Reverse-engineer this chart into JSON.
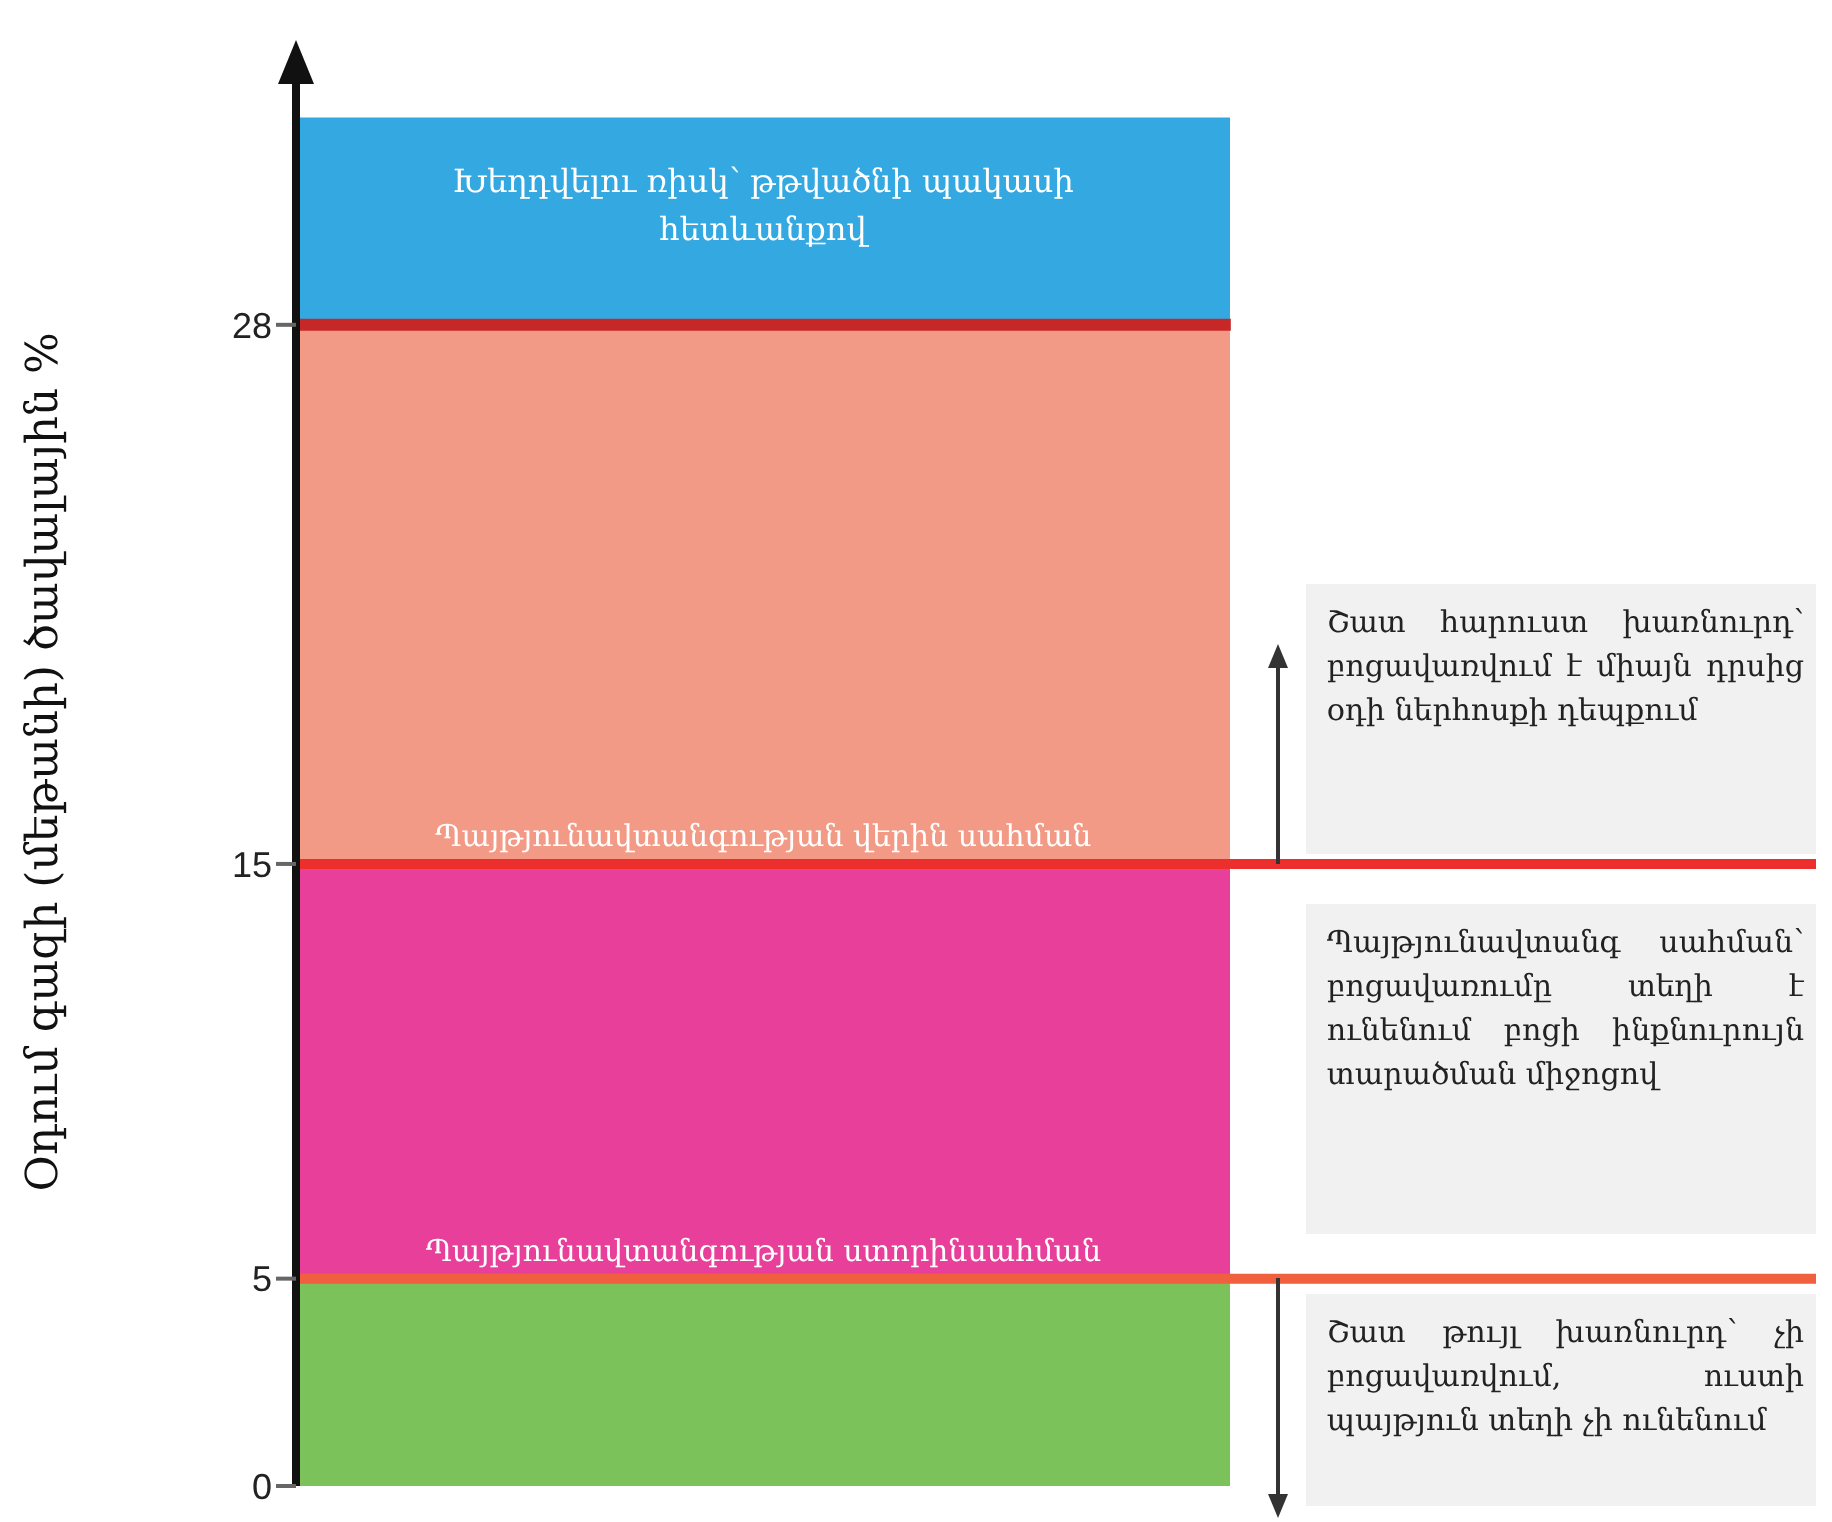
{
  "chart_data": {
    "type": "bar",
    "stacked": true,
    "categories": [
      null
    ],
    "ylabel": "Օդում գազի (մեթանի) ծավալային %",
    "ylim": [
      0,
      34
    ],
    "yticks": [
      0,
      5,
      15,
      28
    ],
    "series": [
      {
        "color": "#7cc25a",
        "values": [
          5
        ]
      },
      {
        "color": "#e8409a",
        "values": [
          10
        ]
      },
      {
        "color": "#f39a86",
        "values": [
          13
        ]
      },
      {
        "name": "Խեղդվելու ռիսկ՝ թթվածնի պակասի հետևանքով",
        "color": "#34a8e0",
        "values": [
          5
        ]
      }
    ],
    "ref_lines": [
      {
        "axis": "y",
        "value": 5,
        "color": "#f0603f",
        "label": "Պայթյունավտանգության ստորինսահման"
      },
      {
        "axis": "y",
        "value": 15,
        "color": "#ec2f2c",
        "label": "Պայթյունավտանգության վերին սահման"
      },
      {
        "axis": "y",
        "value": 28,
        "color": "#c62828"
      }
    ],
    "annotations": [
      "Շատ հարուստ խառնուրդ՝ բոցավառվում է միայն դրսից օդի ներհոսքի դեպքում",
      "Պայթյունավտանգ սահման՝ բոցավառումը տեղի է ունենում բոցի ինքնուրույն տարածման միջոցով",
      "Շատ թույլ խառնուրդ՝ չի բոցավառվում, ուստի պայթյուն տեղի չի ունենում"
    ]
  }
}
